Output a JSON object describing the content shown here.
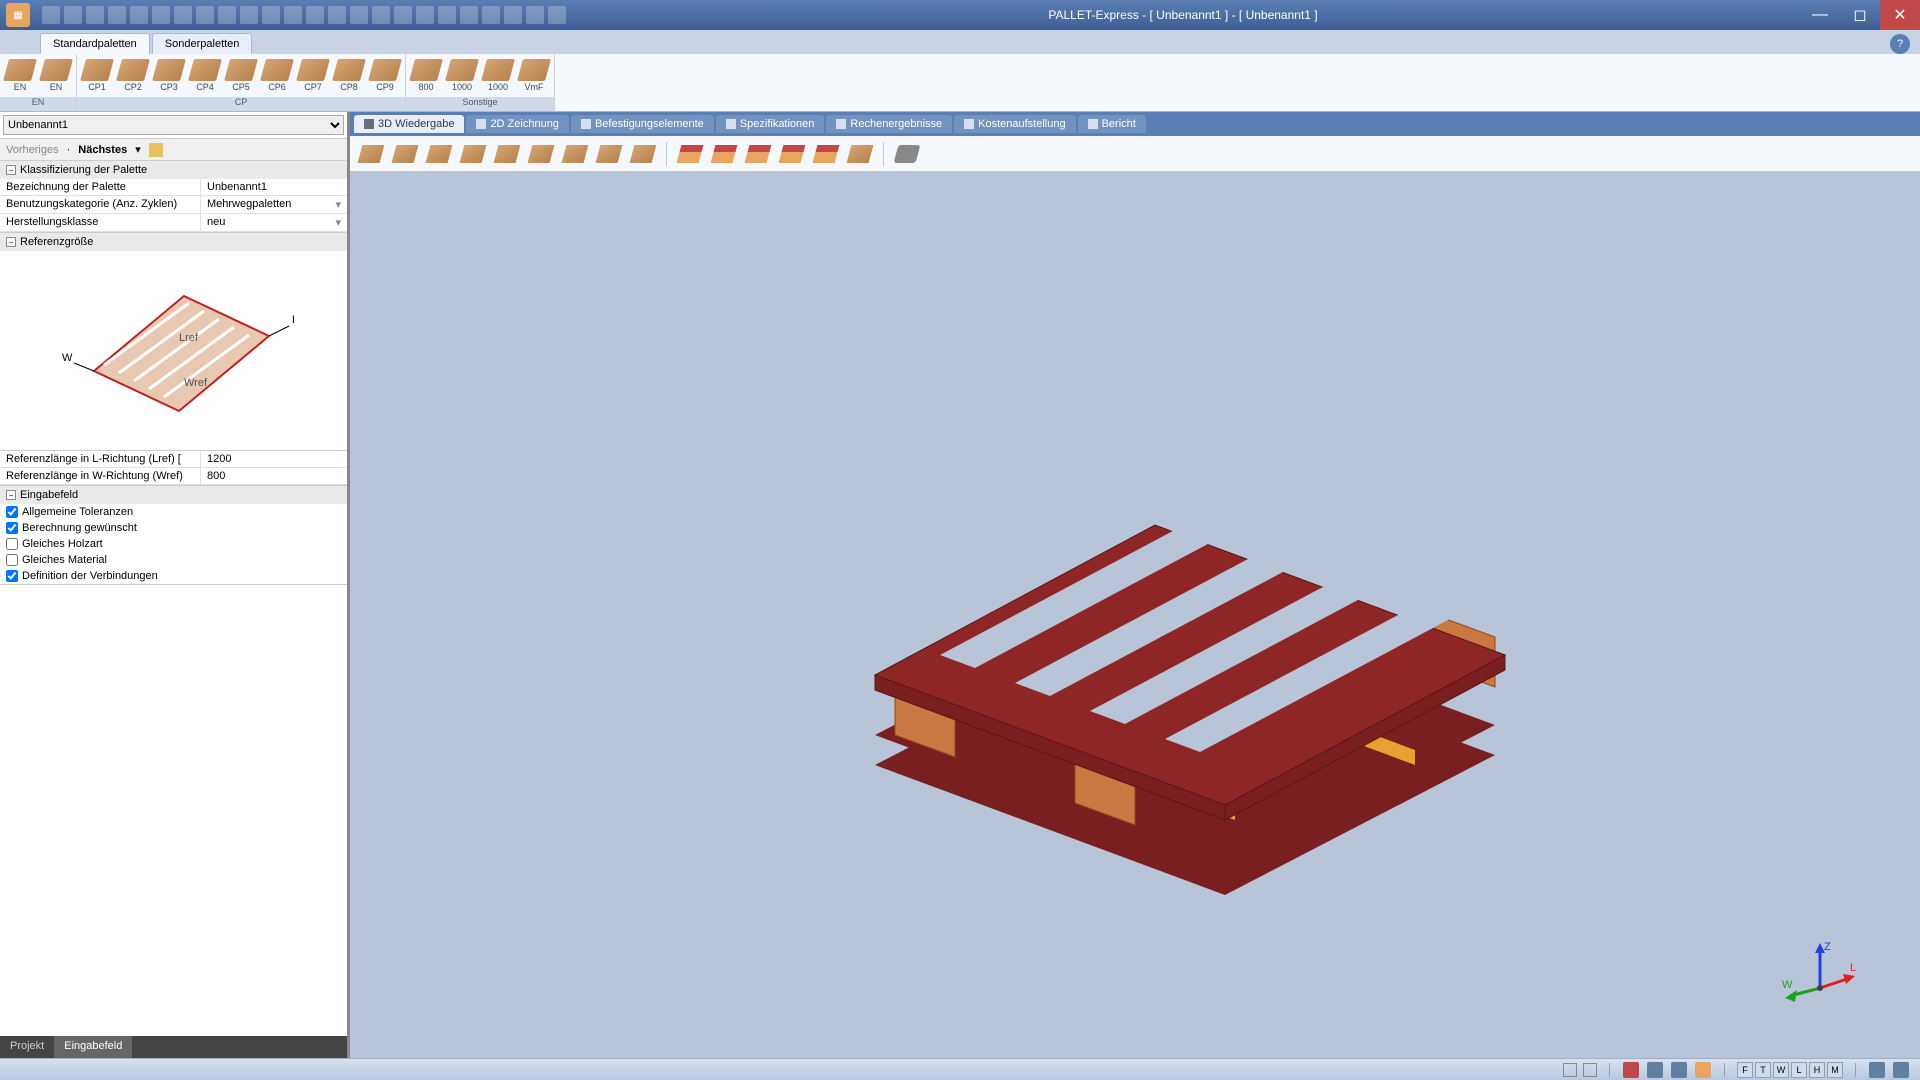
{
  "window": {
    "title": "PALLET-Express - [ Unbenannt1 ] - [ Unbenannt1 ]"
  },
  "ribbonTabs": {
    "items": [
      {
        "label": "Standardpaletten",
        "active": true
      },
      {
        "label": "Sonderpaletten",
        "active": false
      }
    ]
  },
  "ribbon": {
    "groups": [
      {
        "label": "EN",
        "buttons": [
          {
            "label": "EN"
          },
          {
            "label": "EN"
          }
        ]
      },
      {
        "label": "CP",
        "buttons": [
          {
            "label": "CP1"
          },
          {
            "label": "CP2"
          },
          {
            "label": "CP3"
          },
          {
            "label": "CP4"
          },
          {
            "label": "CP5"
          },
          {
            "label": "CP6"
          },
          {
            "label": "CP7"
          },
          {
            "label": "CP8"
          },
          {
            "label": "CP9"
          }
        ]
      },
      {
        "label": "Sonstige",
        "buttons": [
          {
            "label": "800"
          },
          {
            "label": "1000"
          },
          {
            "label": "1000"
          },
          {
            "label": "VmF"
          }
        ]
      }
    ]
  },
  "leftPanel": {
    "docName": "Unbenannt1",
    "nav": {
      "prev": "Vorheriges",
      "next": "Nächstes",
      "sep": "·",
      "arrow": "▾"
    },
    "sections": {
      "classification": {
        "title": "Klassifizierung der Palette",
        "rows": [
          {
            "label": "Bezeichnung der Palette",
            "value": "Unbenannt1",
            "dropdown": false
          },
          {
            "label": "Benutzungskategorie (Anz. Zyklen)",
            "value": "Mehrwegpaletten",
            "dropdown": true
          },
          {
            "label": "Herstellungsklasse",
            "value": "neu",
            "dropdown": true
          }
        ]
      },
      "refsize": {
        "title": "Referenzgröße",
        "diagram": {
          "L": "L",
          "W": "W",
          "Lref": "Lref",
          "Wref": "Wref"
        },
        "rows": [
          {
            "label": "Referenzlänge in L-Richtung (Lref)  [",
            "value": "1200"
          },
          {
            "label": "Referenzlänge in W-Richtung (Wref)",
            "value": "800"
          }
        ]
      },
      "inputfield": {
        "title": "Eingabefeld",
        "checkboxes": [
          {
            "label": "Allgemeine Toleranzen",
            "checked": true
          },
          {
            "label": "Berechnung gewünscht",
            "checked": true
          },
          {
            "label": "Gleiches Holzart",
            "checked": false
          },
          {
            "label": "Gleiches Material",
            "checked": false
          },
          {
            "label": "Definition der Verbindungen",
            "checked": true
          }
        ]
      }
    },
    "bottomTabs": [
      {
        "label": "Projekt",
        "active": false
      },
      {
        "label": "Eingabefeld",
        "active": true
      }
    ]
  },
  "viewport": {
    "tabs": [
      {
        "label": "3D Wiedergabe",
        "active": true
      },
      {
        "label": "2D Zeichnung",
        "active": false
      },
      {
        "label": "Befestigungselemente",
        "active": false
      },
      {
        "label": "Spezifikationen",
        "active": false
      },
      {
        "label": "Rechenergebnisse",
        "active": false
      },
      {
        "label": "Kostenaufstellung",
        "active": false
      },
      {
        "label": "Bericht",
        "active": false
      }
    ],
    "toolbarCount": 16,
    "axis": {
      "x": "L",
      "y": "W",
      "z": "Z"
    }
  },
  "pallet3d": {
    "deckColor": "#7a1f1f",
    "deckTopColor": "#8f2626",
    "stringerColor": "#e8a030",
    "blockColor": "#c87840",
    "canvasBg": "#b8c4d8"
  },
  "statusbar": {
    "viewButtons": [
      "F",
      "T",
      "W",
      "L",
      "H",
      "M"
    ]
  }
}
